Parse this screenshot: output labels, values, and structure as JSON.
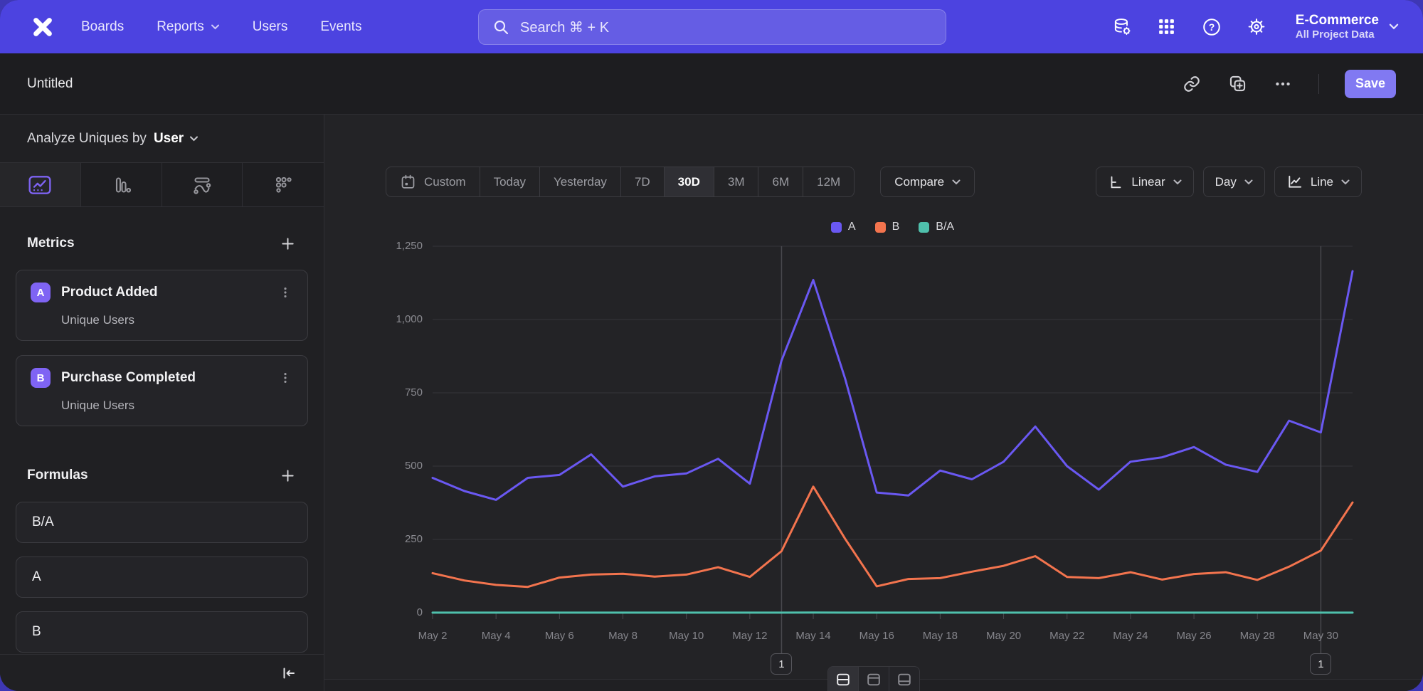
{
  "topnav": {
    "nav_items": [
      {
        "label": "Boards",
        "dropdown": false
      },
      {
        "label": "Reports",
        "dropdown": true
      },
      {
        "label": "Users",
        "dropdown": false
      },
      {
        "label": "Events",
        "dropdown": false
      }
    ],
    "search_text": "Search  ⌘ + K",
    "project": {
      "name": "E-Commerce",
      "subtitle": "All Project Data"
    }
  },
  "doc_header": {
    "title": "Untitled",
    "save_label": "Save"
  },
  "sidebar": {
    "analyze_label": "Analyze Uniques by",
    "analyze_value": "User",
    "metrics": {
      "heading": "Metrics",
      "items": [
        {
          "badge": "A",
          "name": "Product Added",
          "subtitle": "Unique Users"
        },
        {
          "badge": "B",
          "name": "Purchase Completed",
          "subtitle": "Unique Users"
        }
      ]
    },
    "formulas": {
      "heading": "Formulas",
      "items": [
        "B/A",
        "A",
        "B"
      ]
    }
  },
  "controls": {
    "date_ranges": [
      "Custom",
      "Today",
      "Yesterday",
      "7D",
      "30D",
      "3M",
      "6M",
      "12M"
    ],
    "selected_range": "30D",
    "compare_label": "Compare",
    "scale_label": "Linear",
    "interval_label": "Day",
    "chart_type_label": "Line"
  },
  "annotations": [
    {
      "label": "1",
      "date": "May 13"
    },
    {
      "label": "1",
      "date": "May 30"
    }
  ],
  "colors": {
    "nav_purple": "#4C43E0",
    "accent_purple": "#8179F2",
    "series_a": "#6A58F2",
    "series_b": "#F3744E",
    "series_ba": "#4FC0AC",
    "badge_purple": "#7F64F4"
  },
  "icons": {
    "topnav": [
      "data-gear-icon",
      "apps-grid-icon",
      "help-icon",
      "gear-icon"
    ],
    "doc_header": [
      "link-icon",
      "duplicate-icon",
      "ellipsis-icon"
    ],
    "sidebar_tabs": [
      "insights-icon",
      "funnels-icon",
      "flows-icon",
      "retention-icon"
    ],
    "bottom_tabs": [
      "split-view-icon",
      "top-panel-icon",
      "bottom-panel-icon"
    ]
  },
  "chart_data": {
    "type": "line",
    "title": "",
    "xlabel": "",
    "ylabel": "",
    "grid": true,
    "legend_position": "top-center",
    "ylim": [
      0,
      1250
    ],
    "y_ticks": [
      0,
      250,
      500,
      750,
      1000,
      1250
    ],
    "y_tick_labels": [
      "0",
      "250",
      "500",
      "750",
      "1,000",
      "1,250"
    ],
    "x": [
      "May 2",
      "May 3",
      "May 4",
      "May 5",
      "May 6",
      "May 7",
      "May 8",
      "May 9",
      "May 10",
      "May 11",
      "May 12",
      "May 13",
      "May 14",
      "May 15",
      "May 16",
      "May 17",
      "May 18",
      "May 19",
      "May 20",
      "May 21",
      "May 22",
      "May 23",
      "May 24",
      "May 25",
      "May 26",
      "May 27",
      "May 28",
      "May 29",
      "May 30",
      "May 31"
    ],
    "x_tick_labels": [
      "May 2",
      "May 4",
      "May 6",
      "May 8",
      "May 10",
      "May 12",
      "May 14",
      "May 16",
      "May 18",
      "May 20",
      "May 22",
      "May 24",
      "May 26",
      "May 28",
      "May 30"
    ],
    "series": [
      {
        "name": "A",
        "color": "#6A58F2",
        "values": [
          460,
          415,
          385,
          460,
          470,
          540,
          430,
          465,
          475,
          525,
          440,
          860,
          1135,
          800,
          410,
          400,
          485,
          455,
          515,
          635,
          500,
          420,
          515,
          530,
          565,
          505,
          480,
          655,
          615,
          1165
        ]
      },
      {
        "name": "B",
        "color": "#F3744E",
        "values": [
          135,
          110,
          95,
          88,
          120,
          130,
          133,
          123,
          130,
          155,
          122,
          210,
          430,
          253,
          90,
          115,
          118,
          140,
          160,
          193,
          122,
          118,
          138,
          113,
          132,
          138,
          112,
          157,
          212,
          376
        ]
      },
      {
        "name": "B/A",
        "color": "#4FC0AC",
        "values": [
          0.29,
          0.27,
          0.25,
          0.19,
          0.26,
          0.24,
          0.31,
          0.26,
          0.27,
          0.3,
          0.28,
          0.24,
          0.38,
          0.32,
          0.22,
          0.29,
          0.24,
          0.31,
          0.31,
          0.3,
          0.24,
          0.28,
          0.27,
          0.21,
          0.23,
          0.27,
          0.23,
          0.24,
          0.34,
          0.32
        ]
      }
    ]
  }
}
